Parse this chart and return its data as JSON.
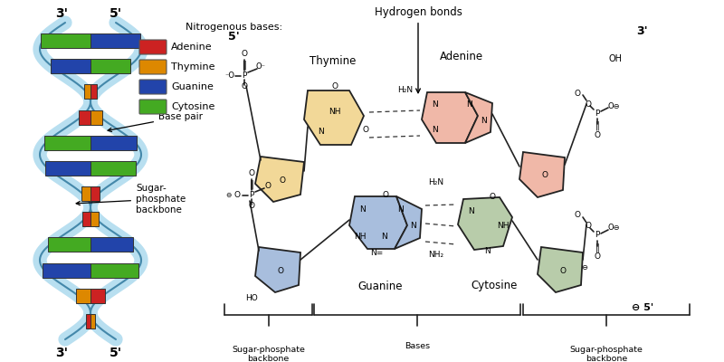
{
  "bg_color": "#ffffff",
  "fig_width": 8.0,
  "fig_height": 4.0,
  "dpi": 100,
  "legend_title": "Nitrogenous bases:",
  "legend_items": [
    {
      "label": "Adenine",
      "color": "#cc2222"
    },
    {
      "label": "Thymine",
      "color": "#dd8800"
    },
    {
      "label": "Guanine",
      "color": "#2244aa"
    },
    {
      "label": "Cytosine",
      "color": "#44aa22"
    }
  ],
  "helix_color": "#b8dff0",
  "helix_outline": "#4488aa",
  "thymine_color": "#f2d898",
  "adenine_color": "#f0b8a8",
  "guanine_color": "#a8bedd",
  "cytosine_color": "#b8ccaa",
  "title_hydrogen": "Hydrogen bonds",
  "title_thymine": "Thymine",
  "title_adenine": "Adenine",
  "title_guanine": "Guanine",
  "title_cytosine": "Cytosine"
}
